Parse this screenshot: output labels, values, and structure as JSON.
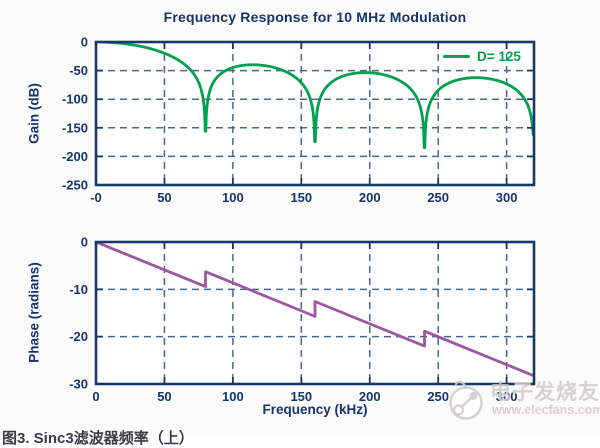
{
  "colors": {
    "background": "#fcfbfb",
    "plot_background": "#ffffff",
    "axis_frame": "#16386b",
    "grid": "#47698f",
    "tick_text": "#14356d",
    "gain_curve": "#00a24d",
    "phase_curve": "#9c57a3",
    "watermark": "#d0cac9",
    "caption": "#3c3c44"
  },
  "chart_data": [
    {
      "type": "line",
      "subplot": "gain",
      "title": "Frequency Response for 10 MHz Modulation",
      "ylabel": "Gain (dB)",
      "xlabel": "",
      "xlim": [
        0,
        320
      ],
      "ylim": [
        -250,
        0
      ],
      "xtick_values": [
        0,
        50,
        100,
        150,
        200,
        250,
        300
      ],
      "xtick_labels": [
        "-0",
        "50",
        "100",
        "150",
        "200",
        "250",
        "300"
      ],
      "ytick_values": [
        0,
        -50,
        -100,
        -150,
        -200,
        -250
      ],
      "ytick_labels": [
        "0",
        "-50",
        "-100",
        "-150",
        "-200",
        "-250"
      ],
      "grid": "dashed",
      "legend": {
        "label": "D= 125",
        "position": "top-right"
      },
      "series": [
        {
          "name": "D= 125",
          "color": "#00a24d",
          "model": "sinc_power_db",
          "sinc_exponent": 3,
          "notch_spacing_khz": 80,
          "notches_khz": [
            80,
            160,
            240,
            320
          ],
          "passband_db_at_0": 0,
          "sidelobe_peak_khz": [
            120,
            200,
            280
          ],
          "sidelobe_peaks_db": [
            -39.8,
            -53.5,
            -62.4
          ]
        }
      ]
    },
    {
      "type": "line",
      "subplot": "phase",
      "ylabel": "Phase (radians)",
      "xlabel": "Frequency (kHz)",
      "xlim": [
        0,
        320
      ],
      "ylim": [
        -30,
        0
      ],
      "xtick_values": [
        0,
        50,
        100,
        150,
        200,
        250,
        300
      ],
      "xtick_labels": [
        "0",
        "50",
        "100",
        "150",
        "200",
        "250",
        "300"
      ],
      "ytick_values": [
        0,
        -10,
        -20,
        -30
      ],
      "ytick_labels": [
        "0",
        "-10",
        "-20",
        "-30"
      ],
      "grid": "dashed",
      "series": [
        {
          "name": "phase",
          "color": "#9c57a3",
          "model": "piecewise_linear",
          "segments": [
            {
              "x": [
                0,
                80
              ],
              "y": [
                0,
                -9.42
              ]
            },
            {
              "x": [
                80,
                160
              ],
              "y": [
                -6.28,
                -15.71
              ]
            },
            {
              "x": [
                160,
                240
              ],
              "y": [
                -12.57,
                -21.99
              ]
            },
            {
              "x": [
                240,
                320
              ],
              "y": [
                -18.85,
                -28.27
              ]
            }
          ]
        }
      ]
    }
  ],
  "caption": "图3. Sinc3滤波器频率（上）",
  "watermark": {
    "brand": "电子发烧友",
    "url": "www.elecfans.com"
  }
}
